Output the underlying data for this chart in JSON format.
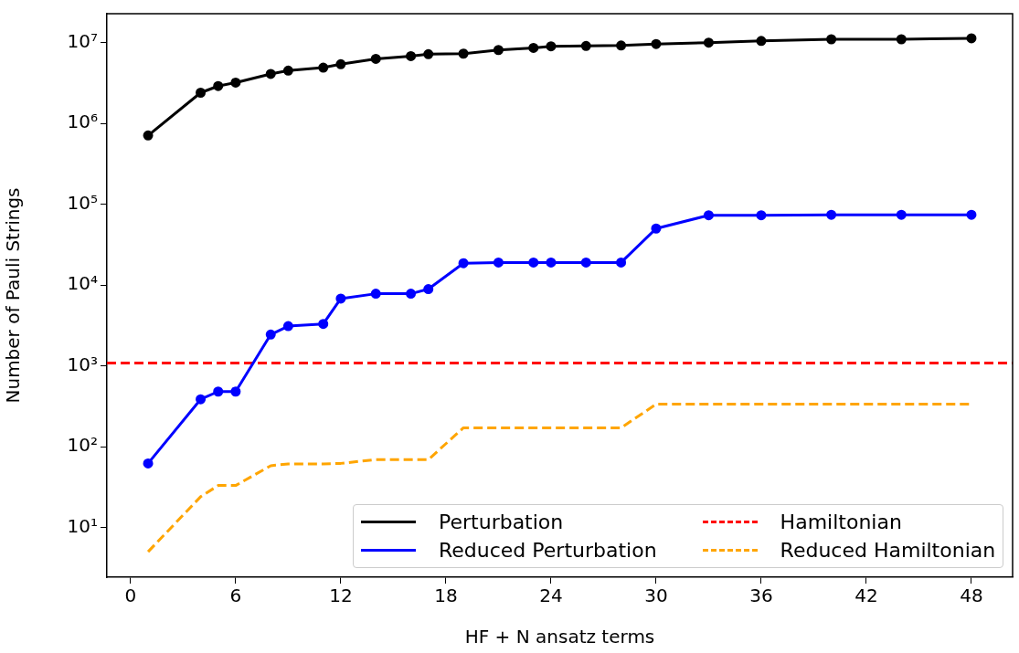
{
  "chart_data": {
    "type": "line",
    "xlabel": "HF + N ansatz terms",
    "ylabel": "Number of Pauli Strings",
    "log": "y",
    "xlim": [
      -1.35,
      50.35
    ],
    "xticks": [
      0,
      6,
      12,
      18,
      24,
      30,
      36,
      42,
      48
    ],
    "ylim": [
      2.42,
      22800000
    ],
    "yticks": [
      {
        "value": 10,
        "label": "10¹"
      },
      {
        "value": 100,
        "label": "10²"
      },
      {
        "value": 1000,
        "label": "10³"
      },
      {
        "value": 10000,
        "label": "10⁴"
      },
      {
        "value": 100000,
        "label": "10⁵"
      },
      {
        "value": 1000000,
        "label": "10⁶"
      },
      {
        "value": 10000000,
        "label": "10⁷"
      }
    ],
    "grid": false,
    "legend": "bottom right",
    "x": [
      1,
      4,
      5,
      6,
      8,
      9,
      11,
      12,
      14,
      16,
      17,
      19,
      21,
      23,
      24,
      26,
      28,
      30,
      33,
      36,
      40,
      44,
      48
    ],
    "series": [
      {
        "name": "Perturbation",
        "color": "#000000",
        "marker": "circle",
        "line_style": "solid",
        "values": [
          710000,
          2400000,
          2900000,
          3200000,
          4100000,
          4500000,
          4900000,
          5400000,
          6300000,
          6800000,
          7200000,
          7300000,
          8100000,
          8600000,
          9000000,
          9100000,
          9200000,
          9600000,
          10000000,
          10500000,
          11000000,
          11000000,
          11300000
        ]
      },
      {
        "name": "Reduced Perturbation",
        "color": "#0000ff",
        "marker": "circle",
        "line_style": "solid",
        "values": [
          62,
          385,
          480,
          480,
          2440,
          3100,
          3300,
          6800,
          7800,
          7800,
          8900,
          18600,
          19000,
          19000,
          19000,
          19000,
          19000,
          50000,
          73000,
          73000,
          74000,
          74000,
          74000
        ]
      },
      {
        "name": "Reduced Hamiltonian",
        "color": "#ffa500",
        "marker": "none",
        "line_style": "dashed",
        "values": [
          5,
          24,
          33,
          33,
          58,
          61,
          61,
          62,
          69,
          69,
          69,
          171,
          171,
          171,
          171,
          171,
          171,
          335,
          335,
          335,
          335,
          335,
          335
        ]
      }
    ],
    "ref_lines": [
      {
        "axis": "y",
        "value": 1080,
        "label": "Hamiltonian",
        "color": "#ff0000",
        "line_style": "dashed"
      }
    ]
  }
}
